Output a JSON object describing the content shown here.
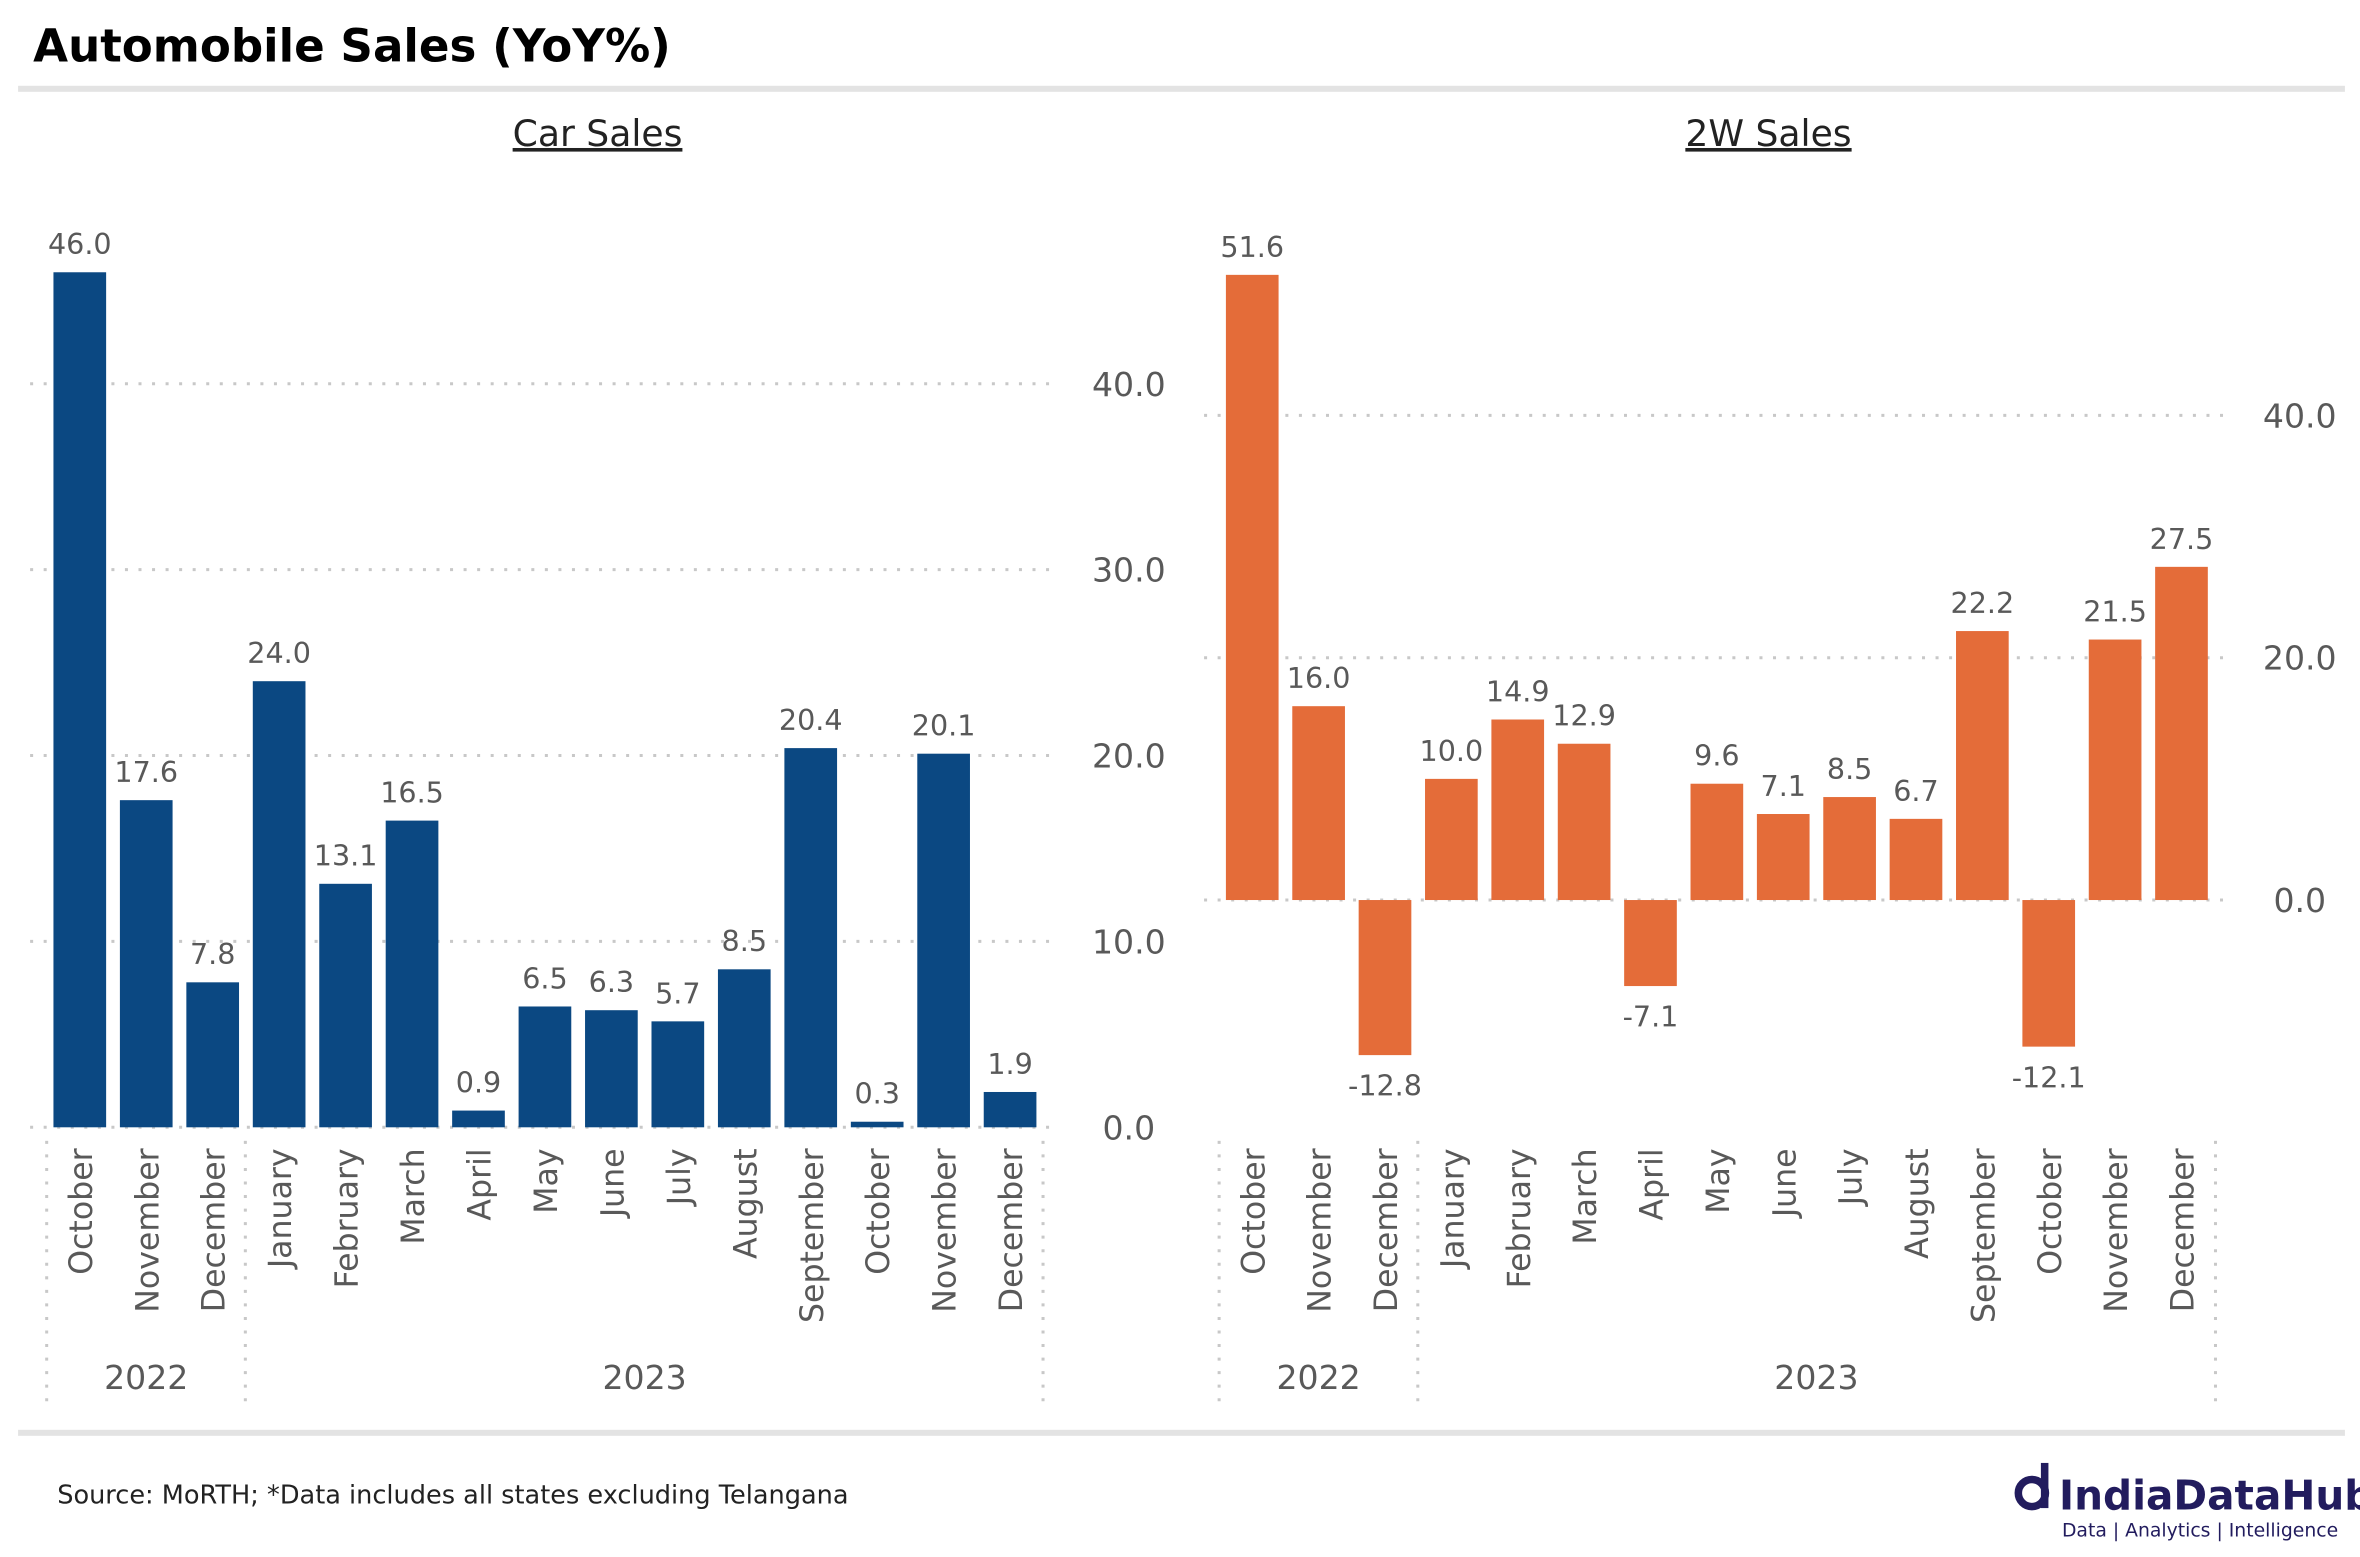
{
  "header": {
    "title": "Automobile Sales (YoY%)"
  },
  "footer": {
    "source": "Source: MoRTH; *Data includes all states excluding Telangana",
    "logo_name": "IndiaDataHub",
    "logo_tagline": "Data | Analytics | Intelligence"
  },
  "colors": {
    "car": "#0b4882",
    "two_wheeler": "#e46c39",
    "text": "#595959"
  },
  "chart_data": [
    {
      "type": "bar",
      "title": "Car Sales",
      "categories": [
        "October",
        "November",
        "December",
        "January",
        "February",
        "March",
        "April",
        "May",
        "June",
        "July",
        "August",
        "September",
        "October",
        "November",
        "December"
      ],
      "groups": [
        {
          "label": "2022",
          "count": 3
        },
        {
          "label": "2023",
          "count": 12
        }
      ],
      "values": [
        46.0,
        17.6,
        7.8,
        24.0,
        13.1,
        16.5,
        0.9,
        6.5,
        6.3,
        5.7,
        8.5,
        20.4,
        0.3,
        20.1,
        1.9
      ],
      "yticks": [
        "0.0",
        "10.0",
        "20.0",
        "30.0",
        "40.0"
      ],
      "ylim": [
        0,
        46
      ],
      "grid": true,
      "yaxis_side": "right"
    },
    {
      "type": "bar",
      "title": "2W Sales",
      "categories": [
        "October",
        "November",
        "December",
        "January",
        "February",
        "March",
        "April",
        "May",
        "June",
        "July",
        "August",
        "September",
        "October",
        "November",
        "December"
      ],
      "groups": [
        {
          "label": "2022",
          "count": 3
        },
        {
          "label": "2023",
          "count": 12
        }
      ],
      "values": [
        51.6,
        16.0,
        -12.8,
        10.0,
        14.9,
        12.9,
        -7.1,
        9.6,
        7.1,
        8.5,
        6.7,
        22.2,
        -12.1,
        21.5,
        27.5
      ],
      "yticks": [
        "0.0",
        "20.0",
        "40.0"
      ],
      "ylim": [
        -12.8,
        51.6
      ],
      "grid": true,
      "yaxis_side": "right"
    }
  ]
}
